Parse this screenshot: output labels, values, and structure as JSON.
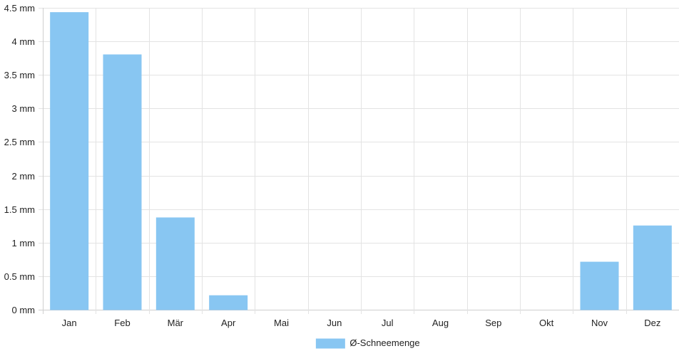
{
  "chart_data": {
    "type": "bar",
    "categories": [
      "Jan",
      "Feb",
      "Mär",
      "Apr",
      "Mai",
      "Jun",
      "Jul",
      "Aug",
      "Sep",
      "Okt",
      "Nov",
      "Dez"
    ],
    "series": [
      {
        "name": "Ø-Schneemenge",
        "values": [
          4.43,
          3.8,
          1.37,
          0.21,
          0,
          0,
          0,
          0,
          0,
          0,
          0.71,
          1.25
        ],
        "color": "#88c6f2"
      }
    ],
    "y_ticks": [
      "0 mm",
      "0.5 mm",
      "1 mm",
      "1.5 mm",
      "2 mm",
      "2.5 mm",
      "3 mm",
      "3.5 mm",
      "4 mm",
      "4.5 mm"
    ],
    "ylim": [
      0,
      4.5
    ],
    "grid": true,
    "legend_position": "bottom-center"
  },
  "colors": {
    "grid": "#e3e3e3",
    "axis": "#cfcfcf",
    "text": "#222222"
  }
}
